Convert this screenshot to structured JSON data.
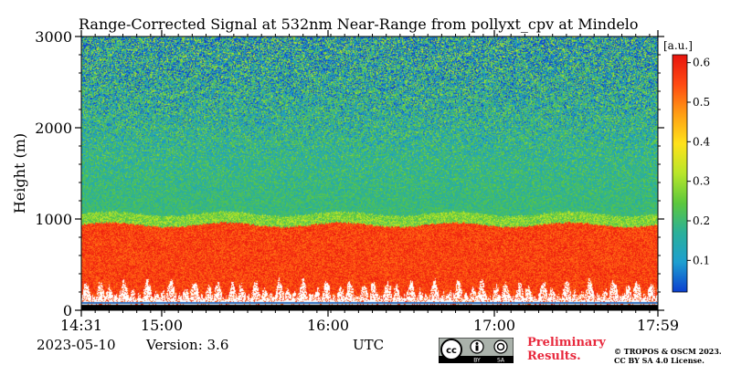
{
  "chart_data": {
    "type": "heatmap",
    "title": "Range-Corrected Signal at 532nm Near-Range from pollyxt_cpv at Mindelo",
    "ylabel": "Height (m)",
    "xlabel": "UTC",
    "x_ticks": [
      "14:31",
      "15:00",
      "16:00",
      "17:00",
      "17:59"
    ],
    "x_tick_minutes": [
      871,
      900,
      960,
      1020,
      1079
    ],
    "xlim_minutes": [
      871,
      1079
    ],
    "y_ticks": [
      0,
      1000,
      2000,
      3000
    ],
    "ylim": [
      0,
      3000
    ],
    "colorbar": {
      "label": "[a.u.]",
      "ticks": [
        0.1,
        0.2,
        0.3,
        0.4,
        0.5,
        0.6
      ],
      "range": [
        0.02,
        0.62
      ],
      "colors": [
        "#0b3fd0",
        "#1e9fd0",
        "#2ab09a",
        "#5cc83c",
        "#b8e62a",
        "#ffe21a",
        "#ff9e14",
        "#ff4a12",
        "#e8140e"
      ]
    },
    "layers": [
      {
        "name": "overlap region",
        "height_range": [
          0,
          60
        ],
        "value": 0.0
      },
      {
        "name": "aerosol layer",
        "height_range": [
          100,
          950
        ],
        "value": 0.55
      },
      {
        "name": "transition",
        "height_range": [
          950,
          1100
        ],
        "value": 0.22
      },
      {
        "name": "free troposphere",
        "height_range": [
          1100,
          3000
        ],
        "value": 0.17
      }
    ]
  },
  "footer": {
    "date": "2023-05-10",
    "version_label": "Version: 3.6",
    "preliminary_line1": "Preliminary",
    "preliminary_line2": "Results.",
    "copyright_line1": "© TROPOS & OSCM 2023.",
    "copyright_line2": "CC BY SA 4.0 License.",
    "cc_by": "BY",
    "cc_sa": "SA"
  }
}
